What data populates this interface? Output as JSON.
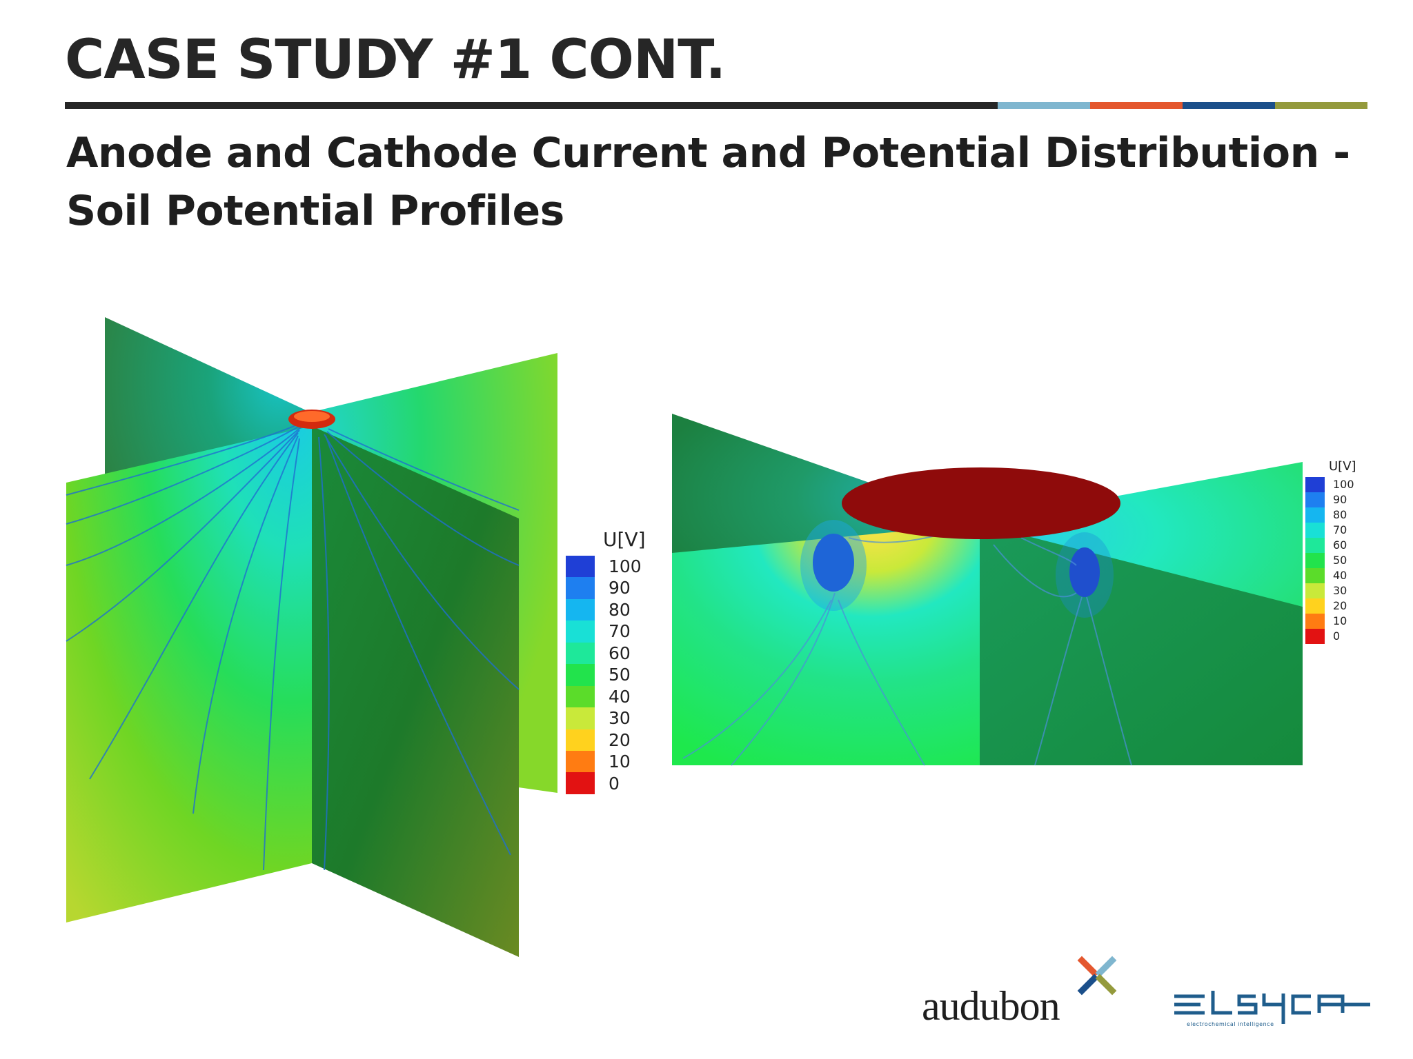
{
  "slide": {
    "title": "CASE STUDY #1 CONT.",
    "subtitle_line1": "Anode and Cathode Current and Potential Distribution -",
    "subtitle_line2": "Soil Potential Profiles",
    "rule_colors": [
      "#262626",
      "#7fb6cf",
      "#e4572e",
      "#1b4f8a",
      "#949a3c"
    ]
  },
  "legend_left": {
    "unit": "U[V]",
    "ticks": [
      "100",
      "90",
      "80",
      "70",
      "60",
      "50",
      "40",
      "30",
      "20",
      "10",
      "0"
    ],
    "colors": [
      "#1f3fd6",
      "#1e7ff0",
      "#15b6f0",
      "#19e0d6",
      "#1ee89a",
      "#22e34c",
      "#5bdc2a",
      "#c9e93a",
      "#ffd21e",
      "#ff7c12",
      "#e21212"
    ]
  },
  "legend_right": {
    "unit": "U[V]",
    "ticks": [
      "100",
      "90",
      "80",
      "70",
      "60",
      "50",
      "40",
      "30",
      "20",
      "10",
      "0"
    ],
    "colors": [
      "#1f3fd6",
      "#1e7ff0",
      "#15b6f0",
      "#19e0d6",
      "#1ee89a",
      "#22e34c",
      "#5bdc2a",
      "#c9e93a",
      "#ffd21e",
      "#ff7c12",
      "#e21212"
    ]
  },
  "logos": {
    "audubon": "audubon",
    "elsyca_tagline": "electrochemical intelligence"
  }
}
